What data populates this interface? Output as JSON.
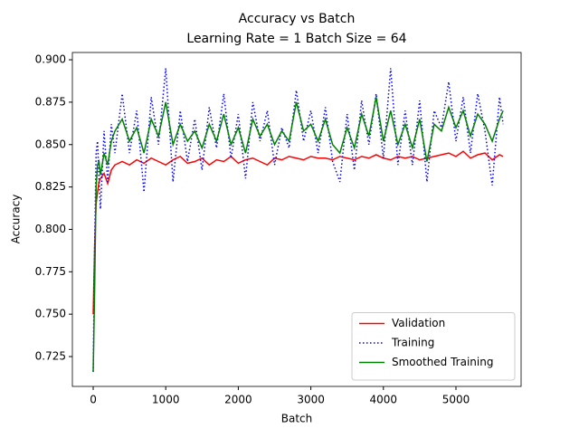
{
  "chart_data": {
    "type": "line",
    "title": "Accuracy vs Batch",
    "subtitle": "Learning Rate = 1 Batch Size = 64",
    "x_label": "Batch",
    "y_label": "Accuracy",
    "x": [
      0,
      20,
      40,
      60,
      80,
      100,
      150,
      200,
      250,
      300,
      400,
      500,
      600,
      700,
      800,
      900,
      1000,
      1100,
      1200,
      1300,
      1400,
      1500,
      1600,
      1700,
      1800,
      1900,
      2000,
      2100,
      2200,
      2300,
      2400,
      2500,
      2600,
      2700,
      2800,
      2900,
      3000,
      3100,
      3200,
      3300,
      3400,
      3500,
      3600,
      3700,
      3800,
      3900,
      4000,
      4100,
      4200,
      4300,
      4400,
      4500,
      4600,
      4700,
      4800,
      4900,
      5000,
      5100,
      5200,
      5300,
      5400,
      5500,
      5600,
      5650
    ],
    "series": [
      {
        "name": "Validation",
        "color": "#ff0000",
        "style": "solid",
        "values": [
          0.75,
          0.79,
          0.815,
          0.822,
          0.828,
          0.83,
          0.833,
          0.827,
          0.835,
          0.838,
          0.84,
          0.838,
          0.841,
          0.839,
          0.842,
          0.84,
          0.838,
          0.841,
          0.843,
          0.839,
          0.84,
          0.842,
          0.838,
          0.841,
          0.84,
          0.843,
          0.839,
          0.841,
          0.842,
          0.84,
          0.838,
          0.842,
          0.841,
          0.843,
          0.842,
          0.841,
          0.843,
          0.842,
          0.842,
          0.841,
          0.843,
          0.842,
          0.841,
          0.843,
          0.842,
          0.844,
          0.842,
          0.841,
          0.843,
          0.842,
          0.843,
          0.841,
          0.842,
          0.843,
          0.844,
          0.845,
          0.843,
          0.846,
          0.842,
          0.844,
          0.845,
          0.841,
          0.844,
          0.843
        ]
      },
      {
        "name": "Training",
        "color": "#0000ff",
        "style": "dotted",
        "values": [
          0.716,
          0.79,
          0.845,
          0.852,
          0.83,
          0.812,
          0.858,
          0.828,
          0.862,
          0.845,
          0.88,
          0.845,
          0.87,
          0.822,
          0.878,
          0.85,
          0.895,
          0.828,
          0.87,
          0.84,
          0.865,
          0.835,
          0.872,
          0.848,
          0.88,
          0.842,
          0.868,
          0.83,
          0.875,
          0.852,
          0.87,
          0.838,
          0.86,
          0.848,
          0.882,
          0.852,
          0.87,
          0.845,
          0.872,
          0.84,
          0.828,
          0.868,
          0.835,
          0.876,
          0.85,
          0.88,
          0.842,
          0.895,
          0.838,
          0.87,
          0.838,
          0.876,
          0.828,
          0.87,
          0.86,
          0.887,
          0.852,
          0.878,
          0.845,
          0.88,
          0.858,
          0.826,
          0.878,
          0.862
        ]
      },
      {
        "name": "Smoothed Training",
        "color": "#008000",
        "style": "solid",
        "values": [
          0.716,
          0.765,
          0.825,
          0.838,
          0.84,
          0.832,
          0.845,
          0.838,
          0.852,
          0.858,
          0.865,
          0.852,
          0.86,
          0.845,
          0.865,
          0.855,
          0.875,
          0.85,
          0.862,
          0.852,
          0.858,
          0.848,
          0.862,
          0.852,
          0.868,
          0.85,
          0.86,
          0.845,
          0.865,
          0.855,
          0.862,
          0.85,
          0.858,
          0.852,
          0.875,
          0.858,
          0.862,
          0.852,
          0.865,
          0.85,
          0.845,
          0.86,
          0.848,
          0.868,
          0.855,
          0.878,
          0.852,
          0.87,
          0.85,
          0.862,
          0.848,
          0.865,
          0.84,
          0.862,
          0.858,
          0.872,
          0.86,
          0.87,
          0.855,
          0.868,
          0.862,
          0.852,
          0.865,
          0.87
        ]
      }
    ],
    "xlim": [
      -287,
      5898
    ],
    "ylim": [
      0.7074,
      0.9043
    ],
    "xticks": [
      0,
      1000,
      2000,
      3000,
      4000,
      5000
    ],
    "yticks": [
      0.725,
      {
        "value": 0.75,
        "label": "0.750"
      },
      0.775,
      {
        "value": 0.8,
        "label": "0.800"
      },
      0.825,
      {
        "value": 0.85,
        "label": "0.850"
      },
      0.875,
      {
        "value": 0.9,
        "label": "0.900"
      }
    ],
    "legend": "lower right",
    "grid": false
  }
}
